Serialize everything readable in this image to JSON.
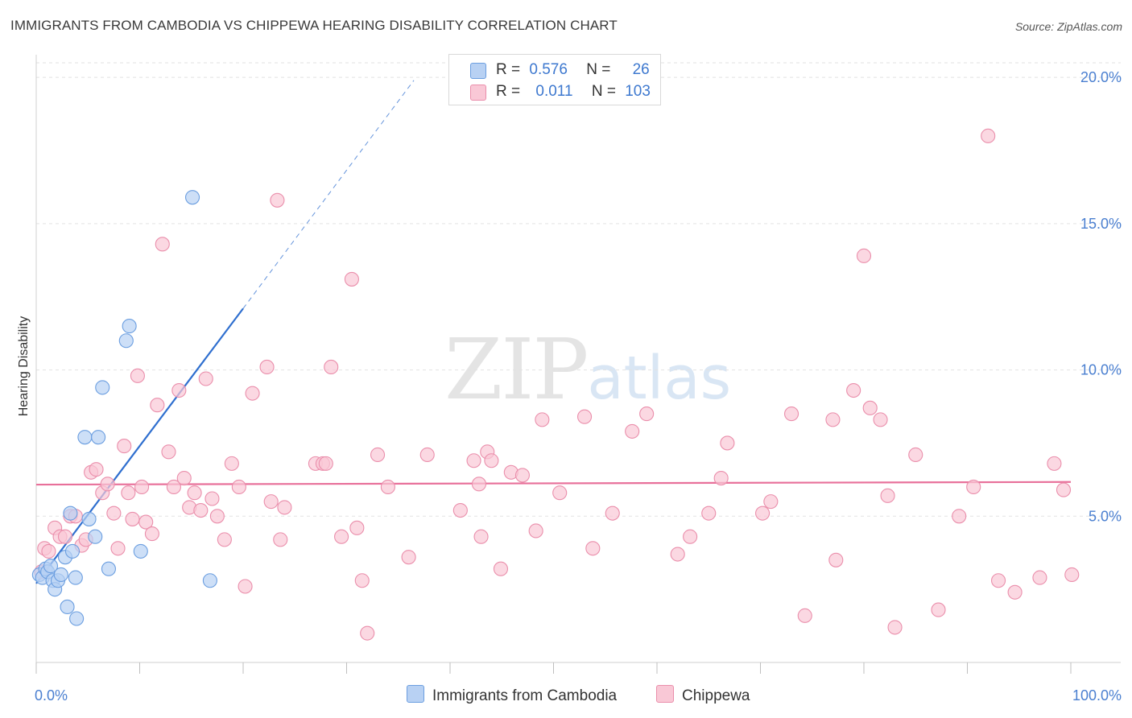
{
  "title": "IMMIGRANTS FROM CAMBODIA VS CHIPPEWA HEARING DISABILITY CORRELATION CHART",
  "source": "Source: ZipAtlas.com",
  "watermark": {
    "zip": "ZIP",
    "atlas": "atlas"
  },
  "legend": {
    "rows": [
      {
        "r_label": "R =",
        "r_value": "0.576",
        "n_label": "N =",
        "n_value": "26"
      },
      {
        "r_label": "R =",
        "r_value": "0.011",
        "n_label": "N =",
        "n_value": "103"
      }
    ]
  },
  "bottom_legend": {
    "cambodia": "Immigrants from Cambodia",
    "chippewa": "Chippewa"
  },
  "colors": {
    "cambodia_fill": "#b8d1f3",
    "cambodia_stroke": "#6b9ee0",
    "cambodia_line": "#2f6fcf",
    "chippewa_fill": "#f9c8d6",
    "chippewa_stroke": "#ea8eab",
    "chippewa_line": "#e8709a"
  },
  "chart_data": {
    "type": "scatter",
    "title": "IMMIGRANTS FROM CAMBODIA VS CHIPPEWA HEARING DISABILITY CORRELATION CHART",
    "xlabel": "",
    "ylabel": "Hearing Disability",
    "xlim": [
      0,
      100
    ],
    "ylim": [
      0,
      20.5
    ],
    "x_tick_labels": [
      "0.0%",
      "100.0%"
    ],
    "y_ticks": [
      5,
      10,
      15,
      20
    ],
    "y_tick_labels": [
      "5.0%",
      "10.0%",
      "15.0%",
      "20.0%"
    ],
    "grid": true,
    "legend_position": "top-center",
    "series": [
      {
        "name": "Immigrants from Cambodia",
        "R": 0.576,
        "N": 26,
        "trend": {
          "x": [
            0,
            20
          ],
          "y": [
            2.7,
            12.1
          ],
          "dashed_extension": {
            "x": [
              20,
              36.5
            ],
            "y": [
              12.1,
              19.9
            ]
          }
        },
        "points": [
          [
            0.3,
            3.0
          ],
          [
            0.6,
            2.9
          ],
          [
            0.9,
            3.2
          ],
          [
            1.1,
            3.1
          ],
          [
            1.4,
            3.3
          ],
          [
            1.6,
            2.8
          ],
          [
            1.8,
            2.5
          ],
          [
            2.1,
            2.8
          ],
          [
            2.4,
            3.0
          ],
          [
            2.8,
            3.6
          ],
          [
            3.0,
            1.9
          ],
          [
            3.3,
            5.1
          ],
          [
            3.5,
            3.8
          ],
          [
            3.9,
            1.5
          ],
          [
            3.8,
            2.9
          ],
          [
            4.7,
            7.7
          ],
          [
            5.1,
            4.9
          ],
          [
            5.7,
            4.3
          ],
          [
            6.0,
            7.7
          ],
          [
            6.4,
            9.4
          ],
          [
            7.0,
            3.2
          ],
          [
            8.7,
            11.0
          ],
          [
            9.0,
            11.5
          ],
          [
            10.1,
            3.8
          ],
          [
            15.1,
            15.9
          ],
          [
            16.8,
            2.8
          ]
        ]
      },
      {
        "name": "Chippewa",
        "R": 0.011,
        "N": 103,
        "trend": {
          "x": [
            0,
            100
          ],
          "y": [
            6.08,
            6.17
          ]
        },
        "points": [
          [
            0.5,
            3.1
          ],
          [
            0.8,
            3.9
          ],
          [
            1.2,
            3.8
          ],
          [
            1.8,
            4.6
          ],
          [
            2.3,
            4.3
          ],
          [
            2.8,
            4.3
          ],
          [
            3.3,
            5.0
          ],
          [
            3.8,
            5.0
          ],
          [
            4.4,
            4.0
          ],
          [
            4.8,
            4.2
          ],
          [
            5.3,
            6.5
          ],
          [
            5.8,
            6.6
          ],
          [
            6.4,
            5.8
          ],
          [
            6.9,
            6.1
          ],
          [
            7.5,
            5.1
          ],
          [
            7.9,
            3.9
          ],
          [
            8.5,
            7.4
          ],
          [
            8.9,
            5.8
          ],
          [
            9.3,
            4.9
          ],
          [
            9.8,
            9.8
          ],
          [
            10.2,
            6.0
          ],
          [
            10.6,
            4.8
          ],
          [
            11.2,
            4.4
          ],
          [
            11.7,
            8.8
          ],
          [
            12.2,
            14.3
          ],
          [
            12.8,
            7.2
          ],
          [
            13.3,
            6.0
          ],
          [
            13.8,
            9.3
          ],
          [
            14.3,
            6.3
          ],
          [
            14.8,
            5.3
          ],
          [
            15.3,
            5.8
          ],
          [
            15.9,
            5.2
          ],
          [
            16.4,
            9.7
          ],
          [
            17.0,
            5.6
          ],
          [
            17.5,
            5.0
          ],
          [
            18.2,
            4.2
          ],
          [
            18.9,
            6.8
          ],
          [
            19.6,
            6.0
          ],
          [
            20.2,
            2.6
          ],
          [
            20.9,
            9.2
          ],
          [
            22.3,
            10.1
          ],
          [
            22.7,
            5.5
          ],
          [
            23.3,
            15.8
          ],
          [
            23.6,
            4.2
          ],
          [
            24.0,
            5.3
          ],
          [
            27.0,
            6.8
          ],
          [
            27.7,
            6.8
          ],
          [
            28.0,
            6.8
          ],
          [
            28.5,
            10.1
          ],
          [
            29.5,
            4.3
          ],
          [
            30.5,
            13.1
          ],
          [
            31.0,
            4.6
          ],
          [
            31.5,
            2.8
          ],
          [
            32.0,
            1.0
          ],
          [
            33.0,
            7.1
          ],
          [
            34.0,
            6.0
          ],
          [
            36.0,
            3.6
          ],
          [
            37.8,
            7.1
          ],
          [
            41.0,
            5.2
          ],
          [
            42.3,
            6.9
          ],
          [
            42.8,
            6.1
          ],
          [
            43.0,
            4.3
          ],
          [
            43.6,
            7.2
          ],
          [
            44.0,
            6.9
          ],
          [
            44.9,
            3.2
          ],
          [
            45.9,
            6.5
          ],
          [
            47.0,
            6.4
          ],
          [
            48.3,
            4.5
          ],
          [
            48.9,
            8.3
          ],
          [
            50.6,
            5.8
          ],
          [
            53.0,
            8.4
          ],
          [
            53.8,
            3.9
          ],
          [
            55.7,
            5.1
          ],
          [
            57.6,
            7.9
          ],
          [
            59.0,
            8.5
          ],
          [
            62.0,
            3.7
          ],
          [
            63.2,
            4.3
          ],
          [
            65.0,
            5.1
          ],
          [
            66.8,
            7.5
          ],
          [
            66.2,
            6.3
          ],
          [
            70.2,
            5.1
          ],
          [
            71.0,
            5.5
          ],
          [
            73.0,
            8.5
          ],
          [
            74.3,
            1.6
          ],
          [
            77.0,
            8.3
          ],
          [
            77.3,
            3.5
          ],
          [
            79.0,
            9.3
          ],
          [
            80.0,
            13.9
          ],
          [
            80.6,
            8.7
          ],
          [
            81.6,
            8.3
          ],
          [
            82.3,
            5.7
          ],
          [
            83.0,
            1.2
          ],
          [
            85.0,
            7.1
          ],
          [
            87.2,
            1.8
          ],
          [
            89.2,
            5.0
          ],
          [
            90.6,
            6.0
          ],
          [
            92.0,
            18.0
          ],
          [
            93.0,
            2.8
          ],
          [
            94.6,
            2.4
          ],
          [
            97.0,
            2.9
          ],
          [
            98.4,
            6.8
          ],
          [
            99.3,
            5.9
          ],
          [
            100.1,
            3.0
          ]
        ]
      }
    ]
  }
}
